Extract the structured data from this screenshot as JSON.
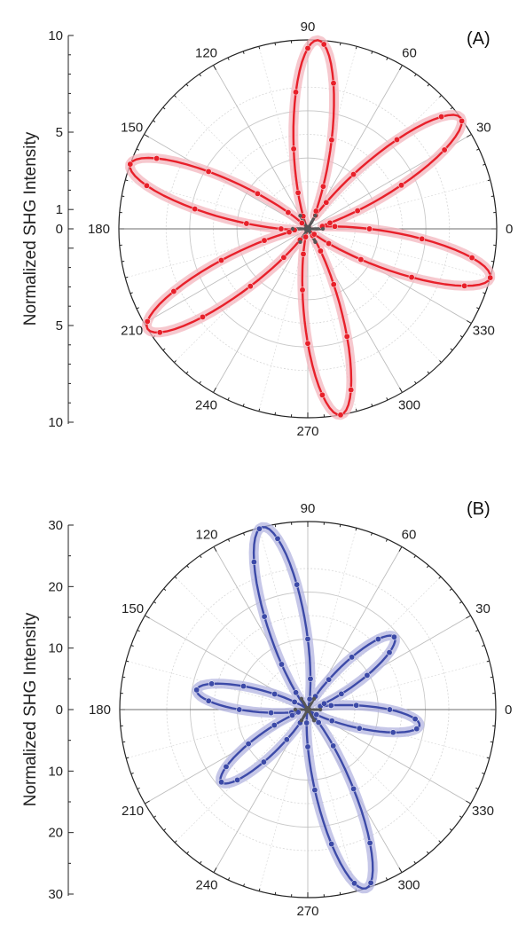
{
  "chart_data": [
    {
      "type": "polar-line",
      "panel_label": "(A)",
      "ylabel": "Normalized SHG Intensity",
      "angle_ticks": [
        "0",
        "30",
        "60",
        "90",
        "120",
        "150",
        "180",
        "210",
        "240",
        "270",
        "300",
        "330"
      ],
      "radial_ticks_upper": [
        "10",
        "5",
        "1",
        "0"
      ],
      "radial_ticks_lower": [
        "5",
        "10"
      ],
      "radial_max": 10,
      "grid": true,
      "series": [
        {
          "color": "#e8202a",
          "halo_color": "#f3b5bd",
          "lobe_angles_deg": [
            36,
            87,
            160,
            212,
            280,
            345
          ],
          "lobe_peak": 10,
          "lobe_width": 10,
          "description_role": "measured SHG (dots) with fit (line)"
        },
        {
          "color": "#555555",
          "lobe_angles_deg": [
            0,
            60,
            120,
            180,
            240,
            300
          ],
          "lobe_peak": 0.8,
          "lobe_width": 5,
          "description_role": "small reference pattern near origin"
        }
      ]
    },
    {
      "type": "polar-line",
      "panel_label": "(B)",
      "ylabel": "Normalized SHG Intensity",
      "angle_ticks": [
        "0",
        "30",
        "60",
        "90",
        "120",
        "150",
        "180",
        "210",
        "240",
        "270",
        "300",
        "330"
      ],
      "radial_ticks_upper": [
        "30",
        "20",
        "10",
        "0"
      ],
      "radial_ticks_lower": [
        "10",
        "20",
        "30"
      ],
      "radial_max": 30,
      "grid": true,
      "series": [
        {
          "color": "#3c4aa8",
          "halo_color": "#b3b4e0",
          "lobes": [
            {
              "angle_deg": 104,
              "peak": 30
            },
            {
              "angle_deg": 40,
              "peak": 18
            },
            {
              "angle_deg": 170,
              "peak": 18
            },
            {
              "angle_deg": 220,
              "peak": 18
            },
            {
              "angle_deg": 288,
              "peak": 30
            },
            {
              "angle_deg": 352,
              "peak": 18
            }
          ],
          "lobe_width": 10,
          "description_role": "measured SHG (dots) with fit (line)"
        },
        {
          "color": "#555555",
          "lobe_angles_deg": [
            0,
            60,
            120,
            180,
            240,
            300
          ],
          "lobe_peak": 2,
          "lobe_width": 5,
          "description_role": "small reference pattern near origin"
        }
      ]
    }
  ]
}
